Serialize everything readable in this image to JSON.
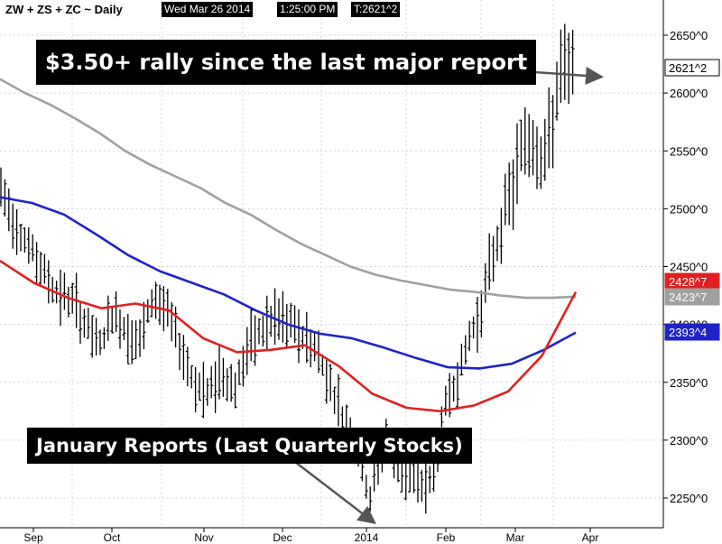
{
  "header": {
    "title": "ZW + ZS + ZC ~ Daily",
    "datetime": "Wed Mar 26 2014",
    "time": "1:25:00 PM",
    "last": "T:2621^2"
  },
  "annotations": {
    "top": "$3.50+ rally since the last major report",
    "bottom": "January Reports (Last Quarterly Stocks)"
  },
  "colors": {
    "price_bars": "#000000",
    "ma_gray": "#a0a0a0",
    "ma_blue": "#1e22c8",
    "ma_red": "#e02020",
    "arrow": "#555555"
  },
  "chart_data": {
    "type": "line",
    "title": "ZW + ZS + ZC ~ Daily",
    "x_tick_labels": [
      "Sep",
      "Oct",
      "Nov",
      "Dec",
      "2014",
      "Feb",
      "Mar",
      "Apr"
    ],
    "y_tick_labels": [
      "2250^0",
      "2300^0",
      "2350^0",
      "2400^0",
      "2450^0",
      "2500^0",
      "2550^0",
      "2600^0",
      "2650^0"
    ],
    "ylim": [
      2220,
      2690
    ],
    "price_markers": [
      {
        "label": "2621^2",
        "value": 2621.25,
        "color": "#000000"
      },
      {
        "label": "2428^7",
        "value": 2428.9,
        "color": "#e02020"
      },
      {
        "label": "2423^7",
        "value": 2423.9,
        "color": "#a0a0a0"
      },
      {
        "label": "2393^4",
        "value": 2393.5,
        "color": "#1e22c8"
      }
    ],
    "series": [
      {
        "values": [
          2535,
          2525,
          2512,
          2500,
          2490,
          2470,
          2455,
          2440,
          2425,
          2418,
          2410,
          2405,
          2398,
          2385,
          2365,
          2350,
          2343,
          2345,
          2352,
          2362,
          2378,
          2410,
          2450,
          2490,
          2540,
          2560,
          2575,
          2600,
          2615,
          2621
        ]
      },
      {
        "values": [
          2612,
          2600,
          2590,
          2578,
          2565,
          2550,
          2538,
          2528,
          2518,
          2505,
          2495,
          2482,
          2470,
          2460,
          2450,
          2443,
          2438,
          2434,
          2430,
          2428,
          2425,
          2423,
          2423,
          2424
        ]
      },
      {
        "values": [
          2510,
          2505,
          2495,
          2478,
          2460,
          2446,
          2436,
          2426,
          2412,
          2400,
          2392,
          2388,
          2380,
          2371,
          2363,
          2362,
          2366,
          2378,
          2393
        ]
      },
      {
        "values": [
          2455,
          2436,
          2423,
          2414,
          2418,
          2412,
          2388,
          2376,
          2378,
          2382,
          2364,
          2340,
          2328,
          2325,
          2330,
          2342,
          2373,
          2428
        ]
      }
    ]
  }
}
